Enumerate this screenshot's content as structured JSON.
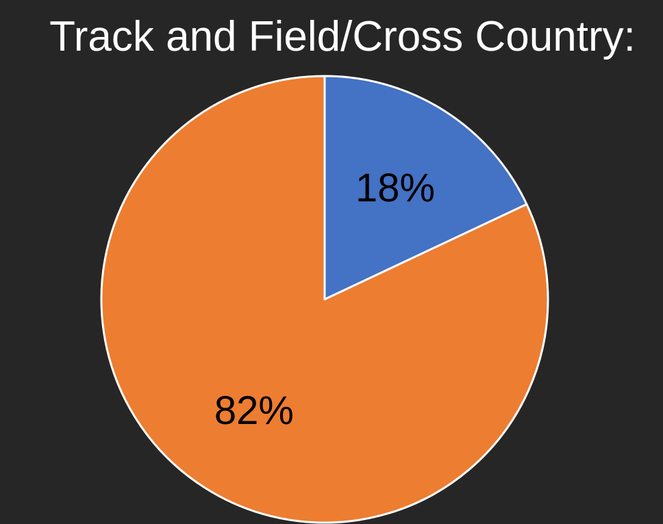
{
  "chart_data": {
    "type": "pie",
    "title": "Track and Field/Cross Country:",
    "values": [
      18,
      82
    ],
    "labels": [
      "18%",
      "82%"
    ],
    "colors": [
      "#4472C4",
      "#ED7D31"
    ],
    "start_angle_deg": 0,
    "direction": "clockwise",
    "border_color": "#FFFFFF",
    "background": "#262626"
  }
}
